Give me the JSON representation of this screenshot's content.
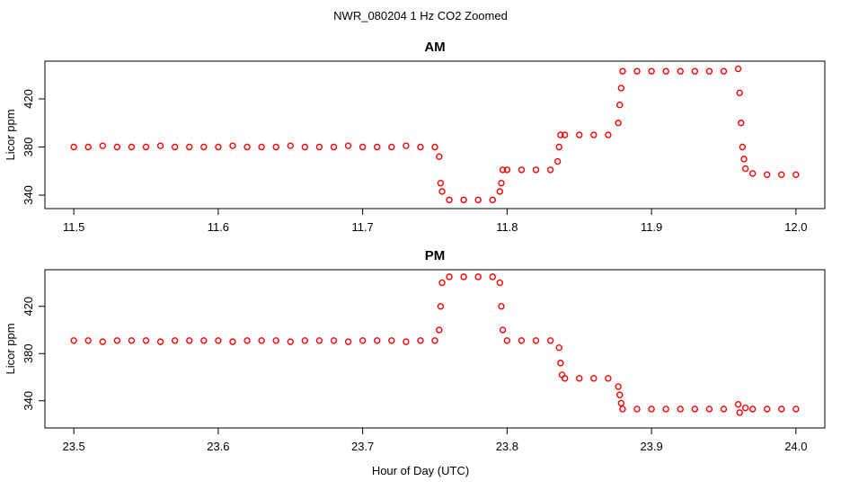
{
  "title": "NWR_080204  1 Hz CO2 Zoomed",
  "xlabel": "Hour of Day (UTC)",
  "chart_data": [
    {
      "type": "scatter",
      "title": "AM",
      "ylabel": "Licor ppm",
      "color": "#ff0000",
      "marker": "open-circle",
      "xlim": [
        11.48,
        12.02
      ],
      "xticks": [
        11.5,
        11.6,
        11.7,
        11.8,
        11.9,
        {
          "value": 12,
          "label": "12.0"
        }
      ],
      "ylim": [
        328.8,
        451.4
      ],
      "yticks": [
        340,
        380,
        420
      ],
      "x": [
        11.5,
        11.51,
        11.52,
        11.53,
        11.54,
        11.55,
        11.56,
        11.57,
        11.58,
        11.59,
        11.6,
        11.61,
        11.62,
        11.63,
        11.64,
        11.65,
        11.66,
        11.67,
        11.68,
        11.69,
        11.7,
        11.71,
        11.72,
        11.73,
        11.74,
        11.75,
        11.753,
        11.754,
        11.755,
        11.76,
        11.77,
        11.78,
        11.79,
        11.795,
        11.796,
        11.797,
        11.8,
        11.81,
        11.82,
        11.83,
        11.835,
        11.836,
        11.837,
        11.84,
        11.85,
        11.86,
        11.87,
        11.877,
        11.878,
        11.879,
        11.88,
        11.89,
        11.9,
        11.91,
        11.92,
        11.93,
        11.94,
        11.95,
        11.96,
        11.961,
        11.962,
        11.963,
        11.964,
        11.965,
        11.97,
        11.98,
        11.99,
        12.0
      ],
      "values": [
        380,
        380,
        381,
        380,
        380,
        380,
        381,
        380,
        380,
        380,
        380,
        381,
        380,
        380,
        380,
        381,
        380,
        380,
        380,
        381,
        380,
        380,
        380,
        381,
        380,
        380,
        372,
        350,
        343,
        336,
        336,
        336,
        336,
        343,
        350,
        361,
        361,
        361,
        361,
        361,
        368,
        380,
        390,
        390,
        390,
        390,
        390,
        400,
        415,
        429,
        443,
        443,
        443,
        443,
        443,
        443,
        443,
        443,
        445,
        425,
        400,
        380,
        370,
        362,
        358,
        357,
        357,
        357
      ]
    },
    {
      "type": "scatter",
      "title": "PM",
      "ylabel": "Licor ppm",
      "color": "#ff0000",
      "marker": "open-circle",
      "xlim": [
        23.48,
        24.02
      ],
      "xticks": [
        23.5,
        23.6,
        23.7,
        23.8,
        23.9,
        {
          "value": 24,
          "label": "24.0"
        }
      ],
      "ylim": [
        317,
        451
      ],
      "yticks": [
        340,
        380,
        420
      ],
      "x": [
        23.5,
        23.51,
        23.52,
        23.53,
        23.54,
        23.55,
        23.56,
        23.57,
        23.58,
        23.59,
        23.6,
        23.61,
        23.62,
        23.63,
        23.64,
        23.65,
        23.66,
        23.67,
        23.68,
        23.69,
        23.7,
        23.71,
        23.72,
        23.73,
        23.74,
        23.75,
        23.753,
        23.754,
        23.755,
        23.76,
        23.77,
        23.78,
        23.79,
        23.795,
        23.796,
        23.797,
        23.8,
        23.81,
        23.82,
        23.83,
        23.836,
        23.837,
        23.838,
        23.84,
        23.85,
        23.86,
        23.87,
        23.877,
        23.878,
        23.879,
        23.88,
        23.89,
        23.9,
        23.91,
        23.92,
        23.93,
        23.94,
        23.95,
        23.96,
        23.961,
        23.965,
        23.97,
        23.98,
        23.99,
        24.0
      ],
      "values": [
        391,
        391,
        390,
        391,
        391,
        391,
        390,
        391,
        391,
        391,
        391,
        390,
        391,
        391,
        391,
        390,
        391,
        391,
        391,
        390,
        391,
        391,
        391,
        390,
        391,
        391,
        400,
        420,
        440,
        445,
        445,
        445,
        445,
        440,
        420,
        400,
        391,
        391,
        391,
        391,
        385,
        372,
        362,
        359,
        359,
        359,
        359,
        352,
        345,
        338,
        333,
        333,
        333,
        333,
        333,
        333,
        333,
        333,
        337,
        330,
        334,
        333,
        333,
        333,
        333
      ]
    }
  ]
}
